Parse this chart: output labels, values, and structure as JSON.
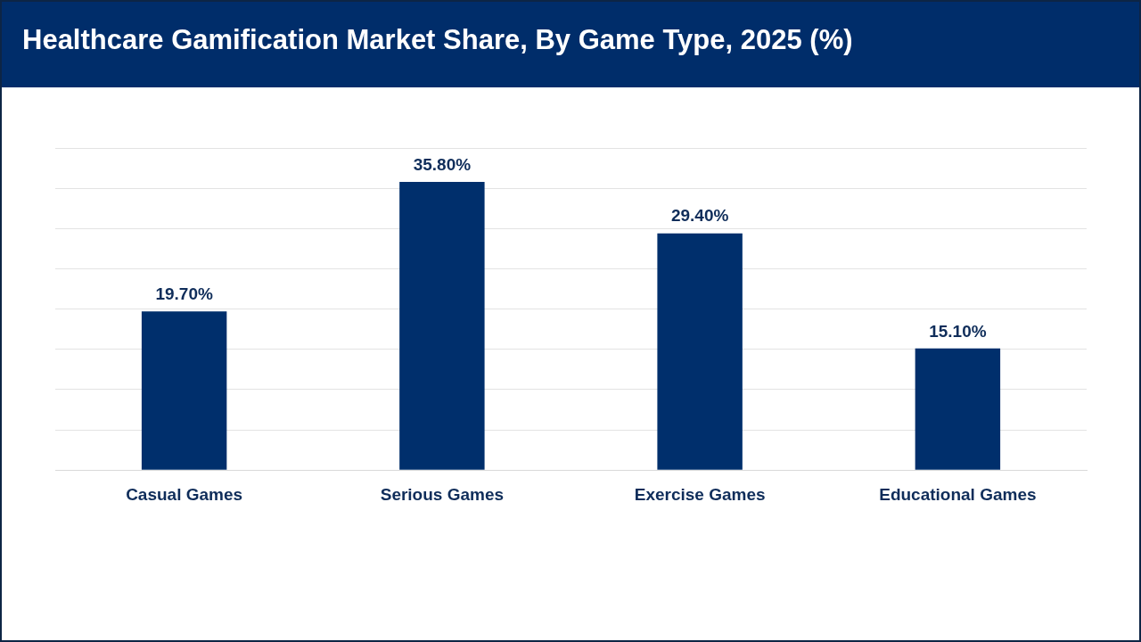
{
  "chart_data": {
    "type": "bar",
    "title": "Healthcare Gamification Market Share, By Game Type, 2025 (%)",
    "categories": [
      "Casual Games",
      "Serious Games",
      "Exercise Games",
      "Educational Games"
    ],
    "values": [
      19.7,
      35.8,
      29.4,
      15.1
    ],
    "value_labels": [
      "19.70%",
      "35.80%",
      "29.40%",
      "15.10%"
    ],
    "color": "#002f6c",
    "ylim": [
      0,
      40
    ],
    "yticks": [
      {
        "value": 0,
        "label": null
      },
      {
        "value": 5,
        "label": null
      },
      {
        "value": 10,
        "label": null
      },
      {
        "value": 15,
        "label": null
      },
      {
        "value": 20,
        "label": null
      },
      {
        "value": 25,
        "label": null
      },
      {
        "value": 30,
        "label": null
      },
      {
        "value": 35,
        "label": null
      },
      {
        "value": 40,
        "label": null
      }
    ],
    "tick_labels": "x",
    "grid": "y"
  }
}
